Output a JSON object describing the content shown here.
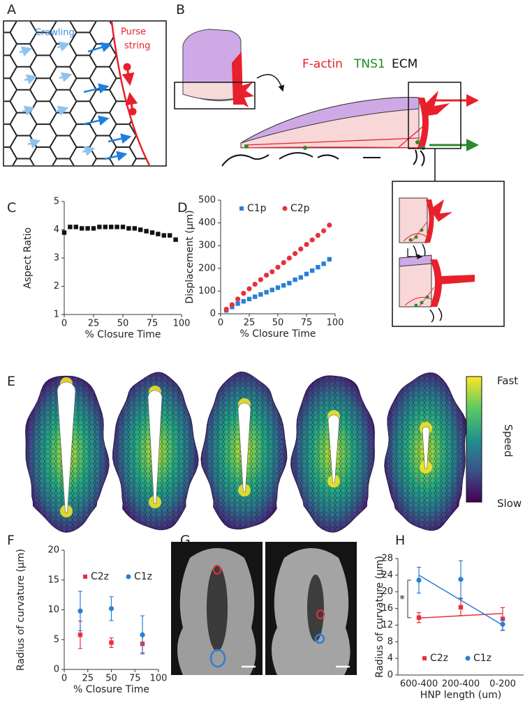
{
  "panel_labels": [
    "A",
    "B",
    "C",
    "D",
    "E",
    "F",
    "G",
    "H"
  ],
  "diagram_a": {
    "crawling": "Crawling",
    "purse_string": [
      "Purse",
      "string"
    ]
  },
  "diagram_b": {
    "labels": [
      "F-actin",
      "TNS1",
      "ECM"
    ]
  },
  "colorbar": {
    "top": "Fast",
    "title": "Speed",
    "bottom": "Slow"
  },
  "chart_data": [
    {
      "type": "scatter",
      "x_label": "% Closure Time",
      "y_label": "Aspect Ratio",
      "x": [
        0,
        5,
        10,
        15,
        20,
        25,
        30,
        35,
        40,
        45,
        50,
        55,
        60,
        65,
        70,
        75,
        80,
        85,
        90,
        95
      ],
      "values": [
        3.9,
        4.1,
        4.1,
        4.05,
        4.05,
        4.05,
        4.1,
        4.1,
        4.1,
        4.1,
        4.1,
        4.05,
        4.05,
        4.0,
        3.95,
        3.9,
        3.85,
        3.8,
        3.8,
        3.65
      ],
      "color": "#111111",
      "marker": "square",
      "xlim": [
        0,
        100
      ],
      "xticks": [
        0,
        25,
        50,
        75,
        100
      ],
      "ylim": [
        1,
        5
      ],
      "yticks": [
        1,
        2,
        3,
        4,
        5
      ]
    },
    {
      "type": "scatter",
      "x_label": "% Closure Time",
      "y_label": "Displacement (μm)",
      "x": [
        5,
        10,
        15,
        20,
        25,
        30,
        35,
        40,
        45,
        50,
        55,
        60,
        65,
        70,
        75,
        80,
        85,
        90,
        95
      ],
      "series": [
        {
          "name": "C1p",
          "color": "#2a7fd6",
          "marker": "square",
          "values": [
            15,
            30,
            45,
            55,
            65,
            75,
            85,
            95,
            105,
            115,
            125,
            135,
            150,
            160,
            175,
            190,
            205,
            220,
            240
          ]
        },
        {
          "name": "C2p",
          "color": "#e8303c",
          "marker": "circle",
          "values": [
            20,
            40,
            65,
            90,
            110,
            130,
            150,
            170,
            185,
            205,
            225,
            245,
            265,
            285,
            305,
            325,
            345,
            365,
            390
          ]
        }
      ],
      "legend": "top-left",
      "xlim": [
        0,
        100
      ],
      "xticks": [
        0,
        25,
        50,
        75,
        100
      ],
      "ylim": [
        0,
        500
      ],
      "yticks": [
        0,
        100,
        200,
        300,
        400,
        500
      ]
    },
    {
      "type": "errorbar",
      "x_label": "% Closure Time",
      "y_label": "Radius of curvature (μm)",
      "x": [
        17,
        50,
        83
      ],
      "series": [
        {
          "name": "C2z",
          "color": "#e8303c",
          "marker": "square",
          "values": [
            5.8,
            4.5,
            4.3
          ],
          "errors": [
            2.3,
            0.8,
            1.5
          ]
        },
        {
          "name": "C1z",
          "color": "#2a7fd6",
          "marker": "circle",
          "values": [
            9.8,
            10.2,
            5.8
          ],
          "errors": [
            3.3,
            2.0,
            3.2
          ]
        }
      ],
      "legend": "top-left",
      "xlim": [
        0,
        100
      ],
      "xticks": [
        0,
        25,
        50,
        75,
        100
      ],
      "ylim": [
        0,
        20
      ],
      "yticks": [
        0,
        5,
        10,
        15,
        20
      ]
    },
    {
      "type": "errorbar",
      "x_label": "HNP length (um)",
      "y_label": "Radius of curvature (μm)",
      "categories": [
        "600-400",
        "200-400",
        "0-200"
      ],
      "series": [
        {
          "name": "C2z",
          "color": "#e8303c",
          "marker": "square",
          "values": [
            13.8,
            16.3,
            13.5
          ],
          "errors": [
            1.2,
            2.0,
            2.7
          ],
          "trend": [
            13.7,
            14.8
          ]
        },
        {
          "name": "C1z",
          "color": "#2a7fd6",
          "marker": "circle",
          "values": [
            22.8,
            23.0,
            12.2
          ],
          "errors": [
            3.1,
            4.5,
            1.5
          ],
          "trend": [
            24,
            12
          ]
        }
      ],
      "annotation": "*",
      "legend": "bottom",
      "ylim": [
        0,
        28
      ],
      "yticks": [
        0,
        4,
        8,
        12,
        16,
        20,
        24,
        28
      ]
    }
  ]
}
